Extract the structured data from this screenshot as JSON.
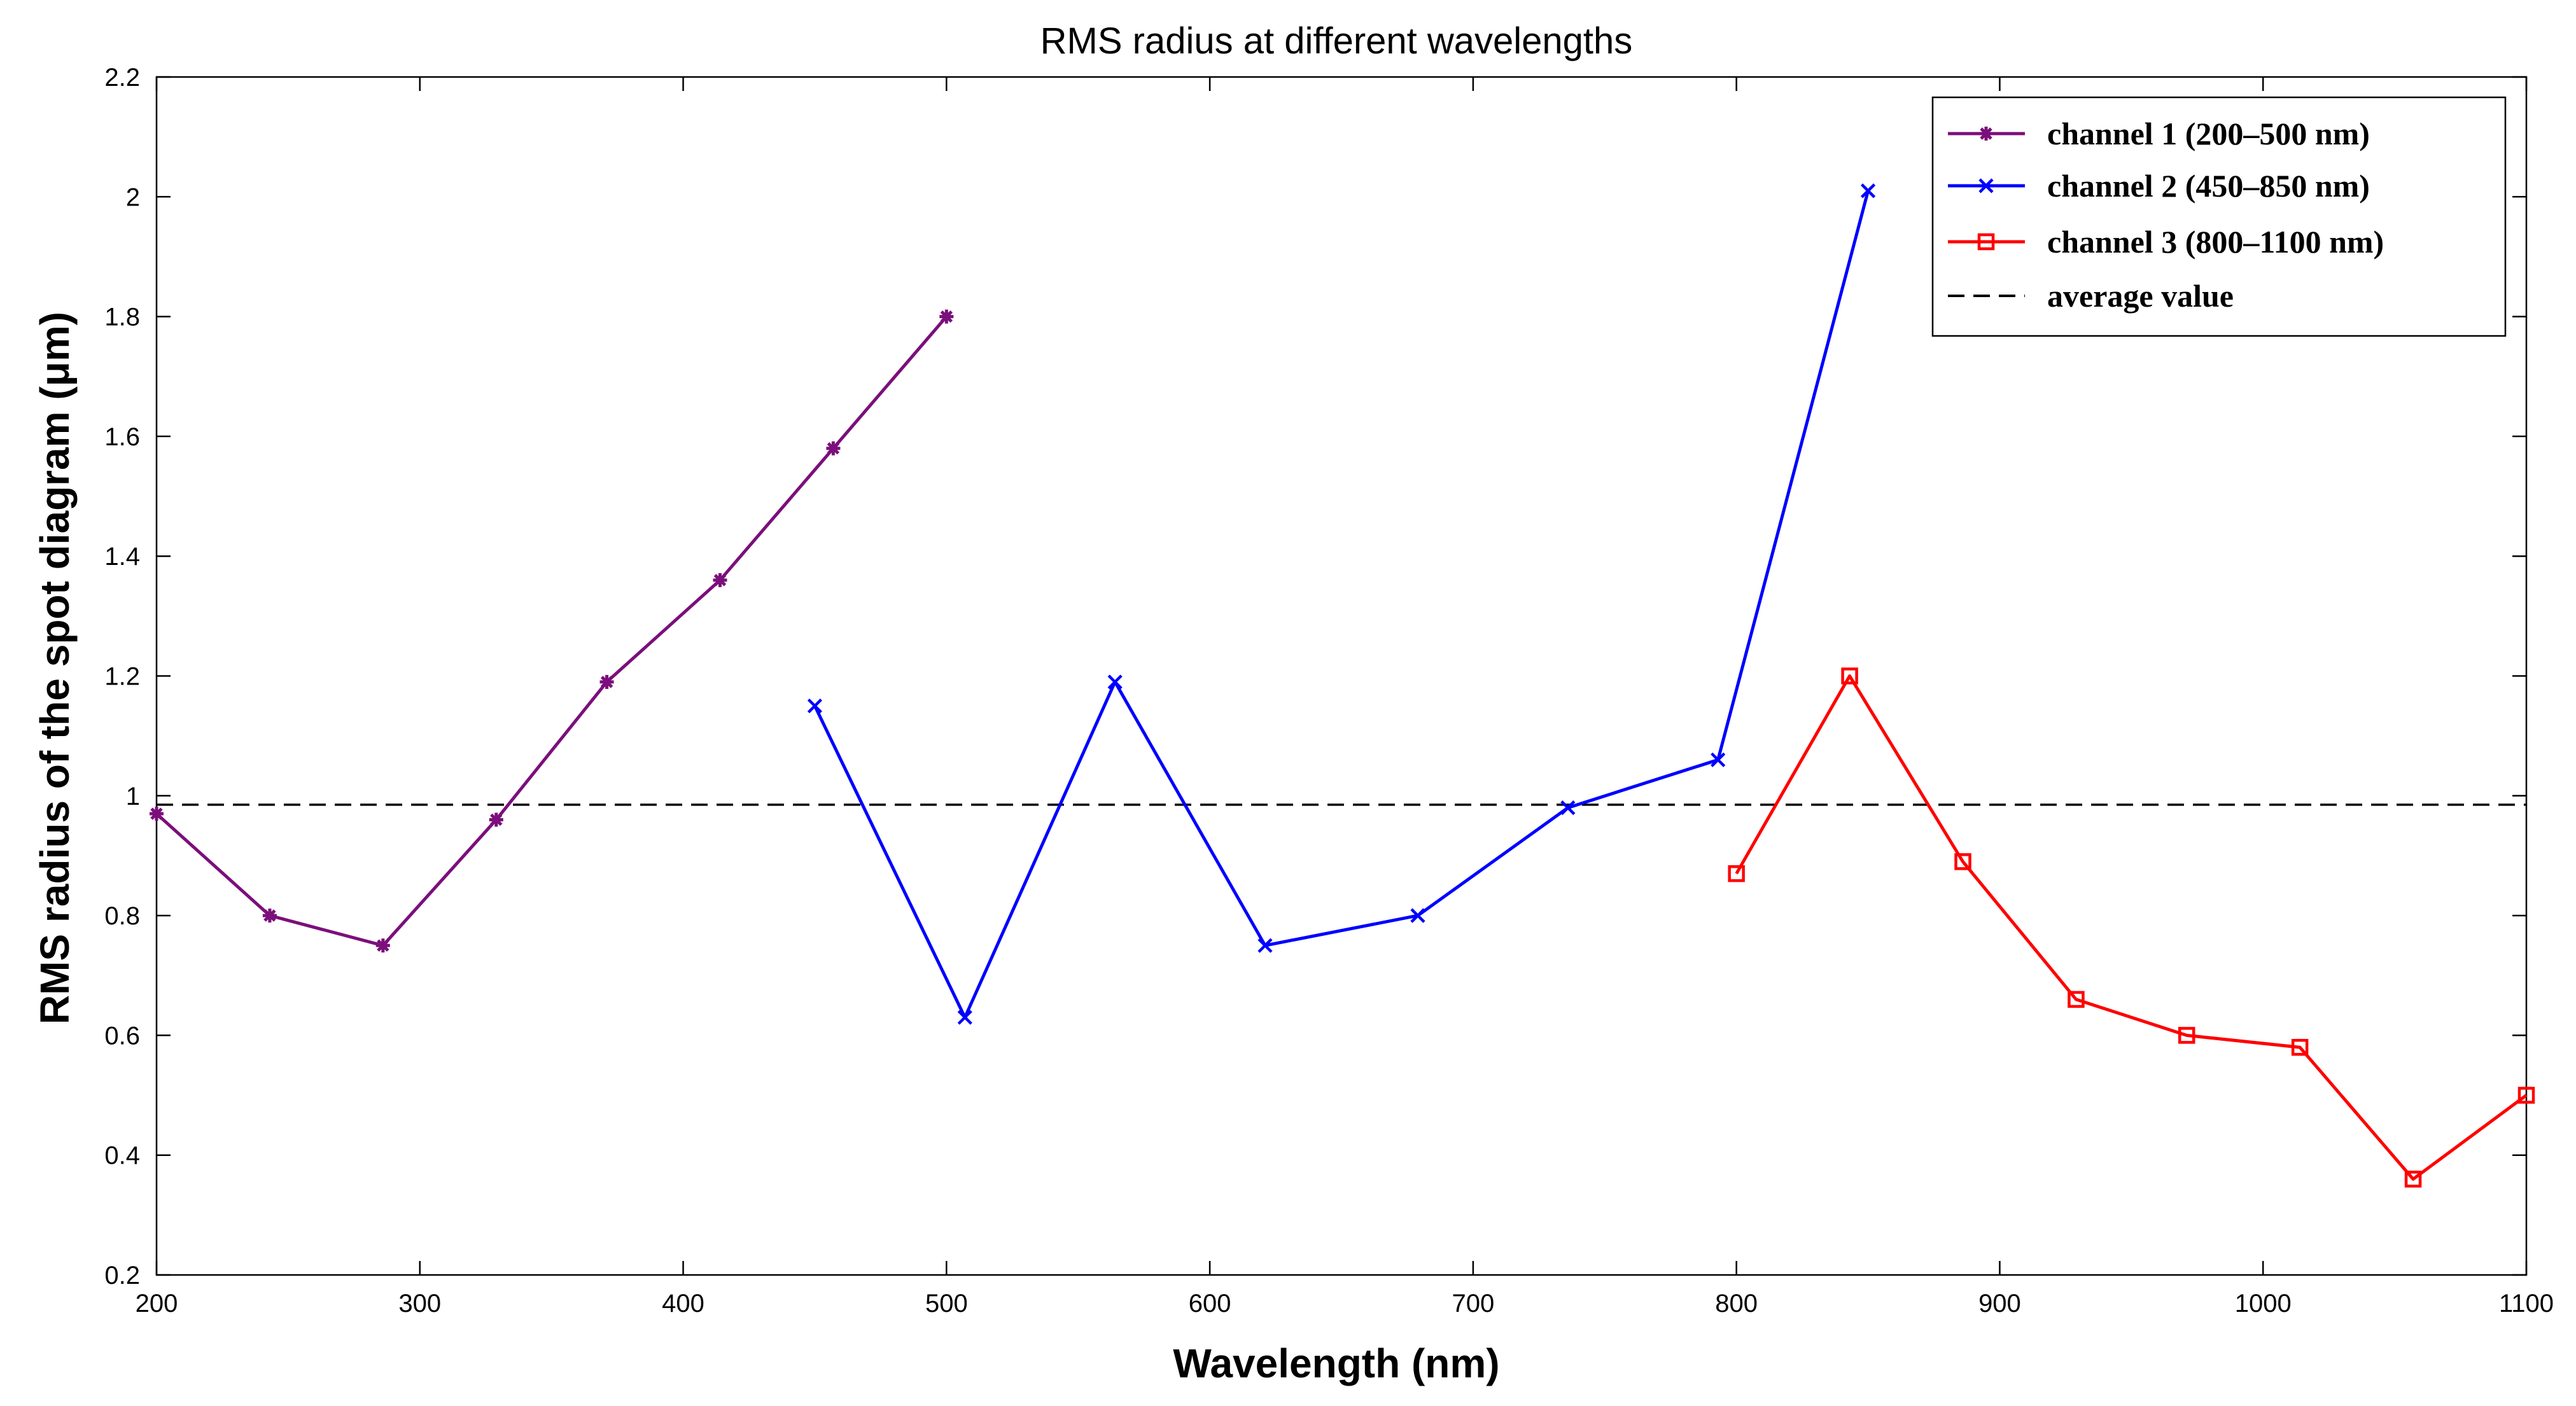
{
  "chart_data": {
    "type": "line",
    "title": "RMS radius at different wavelengths",
    "xlabel": "Wavelength (nm)",
    "ylabel": "RMS radius of the spot diagram (μm)",
    "xlim": [
      200,
      1100
    ],
    "ylim": [
      0.2,
      2.2
    ],
    "xticks": [
      200,
      300,
      400,
      500,
      600,
      700,
      800,
      900,
      1000,
      1100
    ],
    "yticks": [
      0.2,
      0.4,
      0.6,
      0.8,
      1,
      1.2,
      1.4,
      1.6,
      1.8,
      2,
      2.2
    ],
    "grid": false,
    "legend_position": "top-right",
    "series": [
      {
        "name": "channel 1 (200–500 nm)",
        "color": "#7B0F7B",
        "marker": "asterisk",
        "x": [
          200,
          243,
          286,
          329,
          371,
          414,
          457,
          500
        ],
        "y": [
          0.97,
          0.8,
          0.75,
          0.96,
          1.19,
          1.36,
          1.58,
          1.8
        ]
      },
      {
        "name": "channel 2 (450–850 nm)",
        "color": "#0000FF",
        "marker": "x",
        "x": [
          450,
          507,
          564,
          621,
          679,
          736,
          793,
          850
        ],
        "y": [
          1.15,
          0.63,
          1.19,
          0.75,
          0.8,
          0.98,
          1.06,
          2.01
        ]
      },
      {
        "name": "channel 3 (800–1100 nm)",
        "color": "#FF0000",
        "marker": "square",
        "x": [
          800,
          843,
          886,
          929,
          971,
          1014,
          1057,
          1100
        ],
        "y": [
          0.87,
          1.2,
          0.89,
          0.66,
          0.6,
          0.58,
          0.36,
          0.5
        ]
      }
    ],
    "reference_line": {
      "name": "average value",
      "y": 0.985,
      "color": "#000000",
      "style": "dashed"
    }
  }
}
